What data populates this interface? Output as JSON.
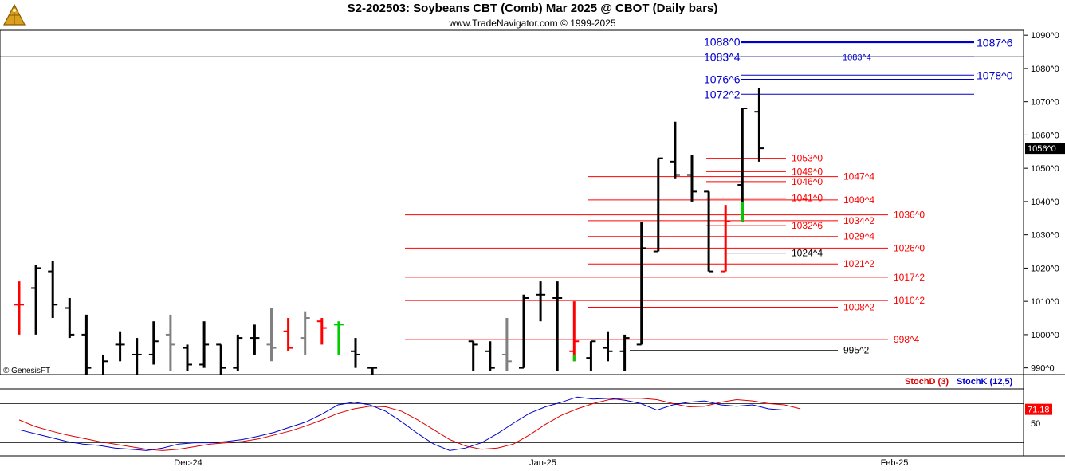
{
  "header": {
    "title": "S2-202503:  Soybeans CBT (Comb) Mar 2025 @ CBOT  (Daily bars)",
    "subtitle": "www.TradeNavigator.com © 1999-2025",
    "logo_icon": "golden-pyramid-logo-icon"
  },
  "watermark": "© GenesisFT",
  "colors": {
    "up_black": "#000000",
    "down_red": "#ff0000",
    "neutral_gray": "#808080",
    "green": "#00cc00",
    "blue_level": "#0000cc",
    "red_level": "#ff0000",
    "stoch_d": "#dd0000",
    "stoch_k": "#0000cc"
  },
  "chart_data": {
    "type": "ohlc",
    "price_axis": {
      "range": [
        988,
        1091
      ],
      "ticks": [
        "990^0",
        "1000^0",
        "1010^0",
        "1020^0",
        "1030^0",
        "1040^0",
        "1050^0",
        "1060^0",
        "1070^0",
        "1080^0",
        "1090^0"
      ],
      "tick_values": [
        990,
        1000,
        1010,
        1020,
        1030,
        1040,
        1050,
        1060,
        1070,
        1080,
        1090
      ],
      "last_price_label": "1056^0",
      "last_price": 1056
    },
    "time_axis": {
      "labels": [
        "Dec-24",
        "Jan-25",
        "Feb-25"
      ],
      "label_bar_index": [
        10,
        35,
        58
      ]
    },
    "bars": [
      {
        "o": 1009,
        "h": 1016,
        "l": 1000,
        "c": 1009,
        "color": "red"
      },
      {
        "o": 1014,
        "h": 1021,
        "l": 1000,
        "c": 1020,
        "color": "black"
      },
      {
        "o": 1019,
        "h": 1022,
        "l": 1005,
        "c": 1009,
        "color": "black"
      },
      {
        "o": 1008,
        "h": 1011,
        "l": 999,
        "c": 1000,
        "color": "black"
      },
      {
        "o": 1000,
        "h": 1006,
        "l": 985,
        "c": 990,
        "color": "black"
      },
      {
        "o": 987,
        "h": 994,
        "l": 982,
        "c": 992,
        "color": "black"
      },
      {
        "o": 997,
        "h": 1001,
        "l": 992,
        "c": 997,
        "color": "black"
      },
      {
        "o": 994,
        "h": 999,
        "l": 988,
        "c": 994,
        "color": "black"
      },
      {
        "o": 994,
        "h": 1004,
        "l": 991,
        "c": 998,
        "color": "black"
      },
      {
        "o": 1000,
        "h": 1006,
        "l": 989,
        "c": 997,
        "color": "gray"
      },
      {
        "o": 996,
        "h": 997,
        "l": 989,
        "c": 991,
        "color": "black"
      },
      {
        "o": 991,
        "h": 1004,
        "l": 990,
        "c": 997,
        "color": "black"
      },
      {
        "o": 997,
        "h": 997,
        "l": 987,
        "c": 990,
        "color": "black"
      },
      {
        "o": 990,
        "h": 1000,
        "l": 989,
        "c": 999,
        "color": "black"
      },
      {
        "o": 999,
        "h": 1003,
        "l": 994,
        "c": 999,
        "color": "black"
      },
      {
        "o": 997,
        "h": 1008,
        "l": 992,
        "c": 996,
        "color": "gray"
      },
      {
        "o": 1001,
        "h": 1005,
        "l": 995,
        "c": 996,
        "color": "red"
      },
      {
        "o": 999,
        "h": 1007,
        "l": 994,
        "c": 1005,
        "color": "gray"
      },
      {
        "o": 1004,
        "h": 1005,
        "l": 997,
        "c": 1002,
        "color": "red"
      },
      {
        "o": 1003,
        "h": 1004,
        "l": 994,
        "c": 1003,
        "color": "green"
      },
      {
        "o": 995,
        "h": 999,
        "l": 990,
        "c": 994,
        "color": "black"
      },
      {
        "o": 990,
        "h": 990,
        "l": 987,
        "c": 990,
        "color": "black"
      },
      {
        "o": null,
        "h": null,
        "l": null,
        "c": null,
        "color": "none"
      },
      {
        "o": null,
        "h": null,
        "l": null,
        "c": null,
        "color": "none"
      },
      {
        "o": null,
        "h": null,
        "l": null,
        "c": null,
        "color": "none"
      },
      {
        "o": null,
        "h": null,
        "l": null,
        "c": null,
        "color": "none"
      },
      {
        "o": null,
        "h": null,
        "l": null,
        "c": null,
        "color": "none"
      },
      {
        "o": 998,
        "h": 998,
        "l": 989,
        "c": 997,
        "color": "black"
      },
      {
        "o": 995,
        "h": 998,
        "l": 989,
        "c": 990,
        "color": "black"
      },
      {
        "o": 994,
        "h": 1005,
        "l": 989,
        "c": 992,
        "color": "gray"
      },
      {
        "o": 990,
        "h": 1012,
        "l": 990,
        "c": 1011,
        "color": "black"
      },
      {
        "o": 1012,
        "h": 1016,
        "l": 1004,
        "c": 1012,
        "color": "black"
      },
      {
        "o": 1011,
        "h": 1016,
        "l": 989,
        "c": 1011,
        "color": "black"
      },
      {
        "o": 995,
        "h": 1010,
        "l": 992,
        "c": 998,
        "color": "red"
      },
      {
        "o": 993,
        "h": 998,
        "l": 989,
        "c": 998,
        "color": "black"
      },
      {
        "o": 996,
        "h": 1001,
        "l": 992,
        "c": 995,
        "color": "black"
      },
      {
        "o": 995,
        "h": 1000,
        "l": 989,
        "c": 999,
        "color": "black"
      },
      {
        "o": 997,
        "h": 1034,
        "l": 997,
        "c": 1026,
        "color": "black"
      },
      {
        "o": 1025,
        "h": 1053,
        "l": 1025,
        "c": 1053,
        "color": "black"
      },
      {
        "o": 1052,
        "h": 1064,
        "l": 1047,
        "c": 1048,
        "color": "black"
      },
      {
        "o": 1048,
        "h": 1054,
        "l": 1040,
        "c": 1043,
        "color": "black"
      },
      {
        "o": 1043,
        "h": 1043,
        "l": 1019,
        "c": 1019,
        "color": "black"
      },
      {
        "o": 1019,
        "h": 1039,
        "l": 1019,
        "c": 1034,
        "color": "red"
      },
      {
        "o": 1045,
        "h": 1068,
        "l": 1034,
        "c": 1068,
        "color": "black"
      },
      {
        "o": 1067,
        "h": 1074,
        "l": 1052,
        "c": 1056,
        "color": "black"
      }
    ],
    "levels": [
      {
        "label": "1088^0",
        "value": 1088,
        "color": "blue",
        "side": "left",
        "line": "left",
        "right_label": "1087^6",
        "right_value": 1087.75
      },
      {
        "label": "1083^4",
        "value": 1083.5,
        "color": "blue",
        "side": "left",
        "line": "left",
        "mid_label": "1083^4"
      },
      {
        "label": "1076^6",
        "value": 1076.75,
        "color": "blue",
        "side": "left",
        "line": "left",
        "right_label": "1078^0",
        "right_value": 1078
      },
      {
        "label": "1072^2",
        "value": 1072.25,
        "color": "blue",
        "side": "left",
        "line": "left"
      },
      {
        "label": "1053^0",
        "value": 1053,
        "color": "red"
      },
      {
        "label": "1049^0",
        "value": 1049,
        "color": "red"
      },
      {
        "label": "1047^4",
        "value": 1047.5,
        "color": "red"
      },
      {
        "label": "1046^0",
        "value": 1046,
        "color": "red"
      },
      {
        "label": "1041^0",
        "value": 1041,
        "color": "red"
      },
      {
        "label": "1040^4",
        "value": 1040.5,
        "color": "red"
      },
      {
        "label": "1036^0",
        "value": 1036,
        "color": "red"
      },
      {
        "label": "1034^2",
        "value": 1034.25,
        "color": "red"
      },
      {
        "label": "1032^6",
        "value": 1032.75,
        "color": "red"
      },
      {
        "label": "1029^4",
        "value": 1029.5,
        "color": "red"
      },
      {
        "label": "1026^0",
        "value": 1026,
        "color": "red"
      },
      {
        "label": "1024^4",
        "value": 1024.5,
        "color": "black"
      },
      {
        "label": "1021^2",
        "value": 1021.25,
        "color": "red"
      },
      {
        "label": "1017^2",
        "value": 1017.25,
        "color": "red"
      },
      {
        "label": "1010^2",
        "value": 1010.25,
        "color": "red"
      },
      {
        "label": "1008^2",
        "value": 1008.25,
        "color": "red"
      },
      {
        "label": "998^4",
        "value": 998.5,
        "color": "red"
      },
      {
        "label": "995^2",
        "value": 995.25,
        "color": "black"
      }
    ],
    "stochastic": {
      "legend_d": "StochD (3)",
      "legend_k": "StochK (12,5)",
      "last_value_label": "71.18",
      "axis_label": "50",
      "range": [
        0,
        100
      ],
      "stoch_d": [
        55,
        45,
        38,
        32,
        27,
        22,
        18,
        14,
        10,
        8,
        10,
        14,
        18,
        20,
        22,
        26,
        32,
        38,
        46,
        55,
        65,
        72,
        76,
        75,
        68,
        55,
        40,
        25,
        15,
        10,
        12,
        18,
        32,
        48,
        62,
        72,
        80,
        86,
        88,
        88,
        86,
        80,
        75,
        76,
        82,
        86,
        84,
        80,
        78,
        72
      ],
      "stoch_k": [
        40,
        34,
        28,
        22,
        18,
        16,
        12,
        10,
        8,
        12,
        18,
        20,
        20,
        22,
        25,
        30,
        36,
        44,
        52,
        64,
        78,
        82,
        78,
        68,
        52,
        34,
        18,
        8,
        12,
        20,
        34,
        50,
        65,
        75,
        82,
        90,
        87,
        88,
        85,
        80,
        70,
        78,
        82,
        84,
        78,
        76,
        78,
        72,
        70
      ]
    }
  }
}
